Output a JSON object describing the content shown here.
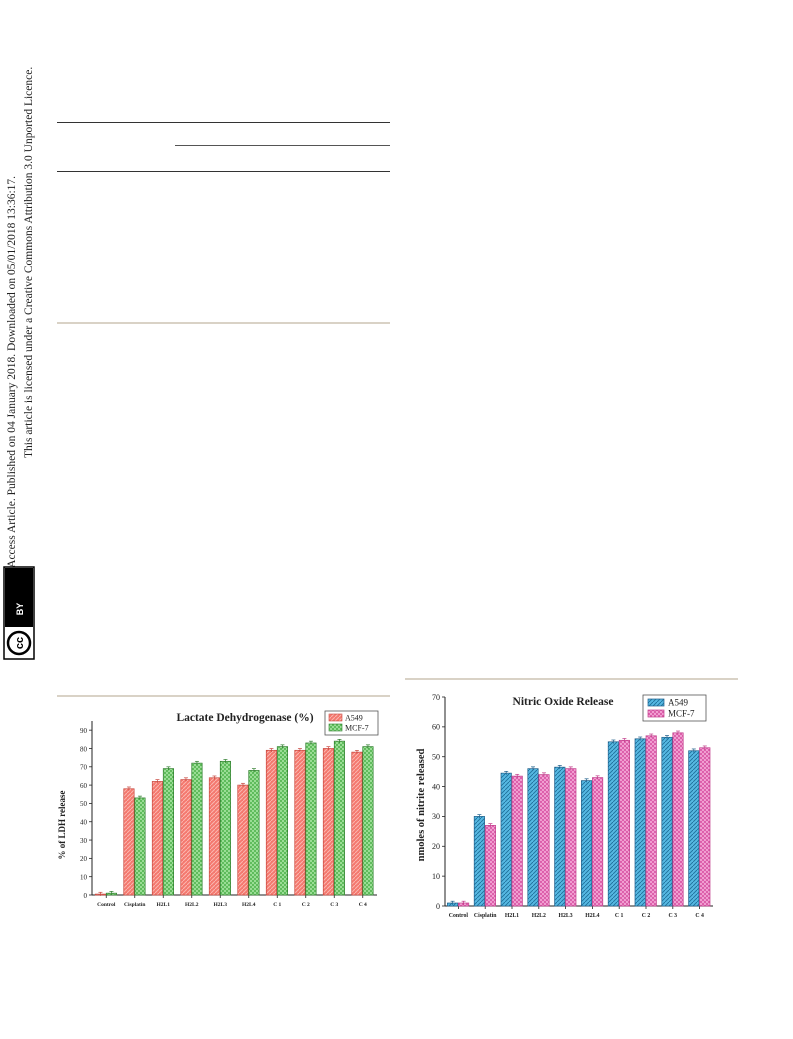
{
  "sidebar": {
    "line1": "Open Access Article. Published on 04 January 2018. Downloaded on 05/01/2018 13:36:17.",
    "line2": "This article is licensed under a Creative Commons Attribution 3.0 Unported Licence.",
    "cc_badge": "cc",
    "by_badge": "BY"
  },
  "colors": {
    "a549_left": "#f4786e",
    "mcf7_left": "#5ec35c",
    "a549_right": "#56b8e2",
    "mcf7_right": "#ee7ec3",
    "rule_dark": "#333333",
    "rule_light": "#d9d2c6"
  },
  "chart_data": [
    {
      "type": "bar",
      "title": "Lactate Dehydrogenase (%)",
      "xlabel": "",
      "ylabel": "% of LDH release",
      "ylim": [
        0,
        95
      ],
      "yticks": [
        0,
        10,
        20,
        30,
        40,
        50,
        60,
        70,
        80,
        90
      ],
      "categories": [
        "Control",
        "Cisplatin",
        "H2L1",
        "H2L2",
        "H2L3",
        "H2L4",
        "C 1",
        "C 2",
        "C 3",
        "C 4"
      ],
      "legend_position": "top-right",
      "grid": false,
      "series": [
        {
          "name": "A549",
          "values": [
            0.5,
            58,
            62,
            63,
            64,
            60,
            79,
            79,
            80,
            78
          ]
        },
        {
          "name": "MCF-7",
          "values": [
            1,
            53,
            69,
            72,
            73,
            68,
            81,
            83,
            84,
            81
          ]
        }
      ]
    },
    {
      "type": "bar",
      "title": "Nitric Oxide Release",
      "xlabel": "",
      "ylabel": "nmoles of nitrite released",
      "ylim": [
        0,
        70
      ],
      "yticks": [
        0,
        10,
        20,
        30,
        40,
        50,
        60,
        70
      ],
      "categories": [
        "Control",
        "Cisplatin",
        "H2L1",
        "H2L2",
        "H2L3",
        "H2L4",
        "C 1",
        "C 2",
        "C 3",
        "C 4"
      ],
      "legend_position": "top-right",
      "grid": false,
      "series": [
        {
          "name": "A549",
          "values": [
            1,
            30,
            44.5,
            46,
            46.5,
            42,
            55,
            56,
            56.5,
            52
          ]
        },
        {
          "name": "MCF-7",
          "values": [
            1,
            27,
            43.5,
            44,
            46,
            43,
            55.5,
            57,
            58,
            53
          ]
        }
      ]
    }
  ]
}
